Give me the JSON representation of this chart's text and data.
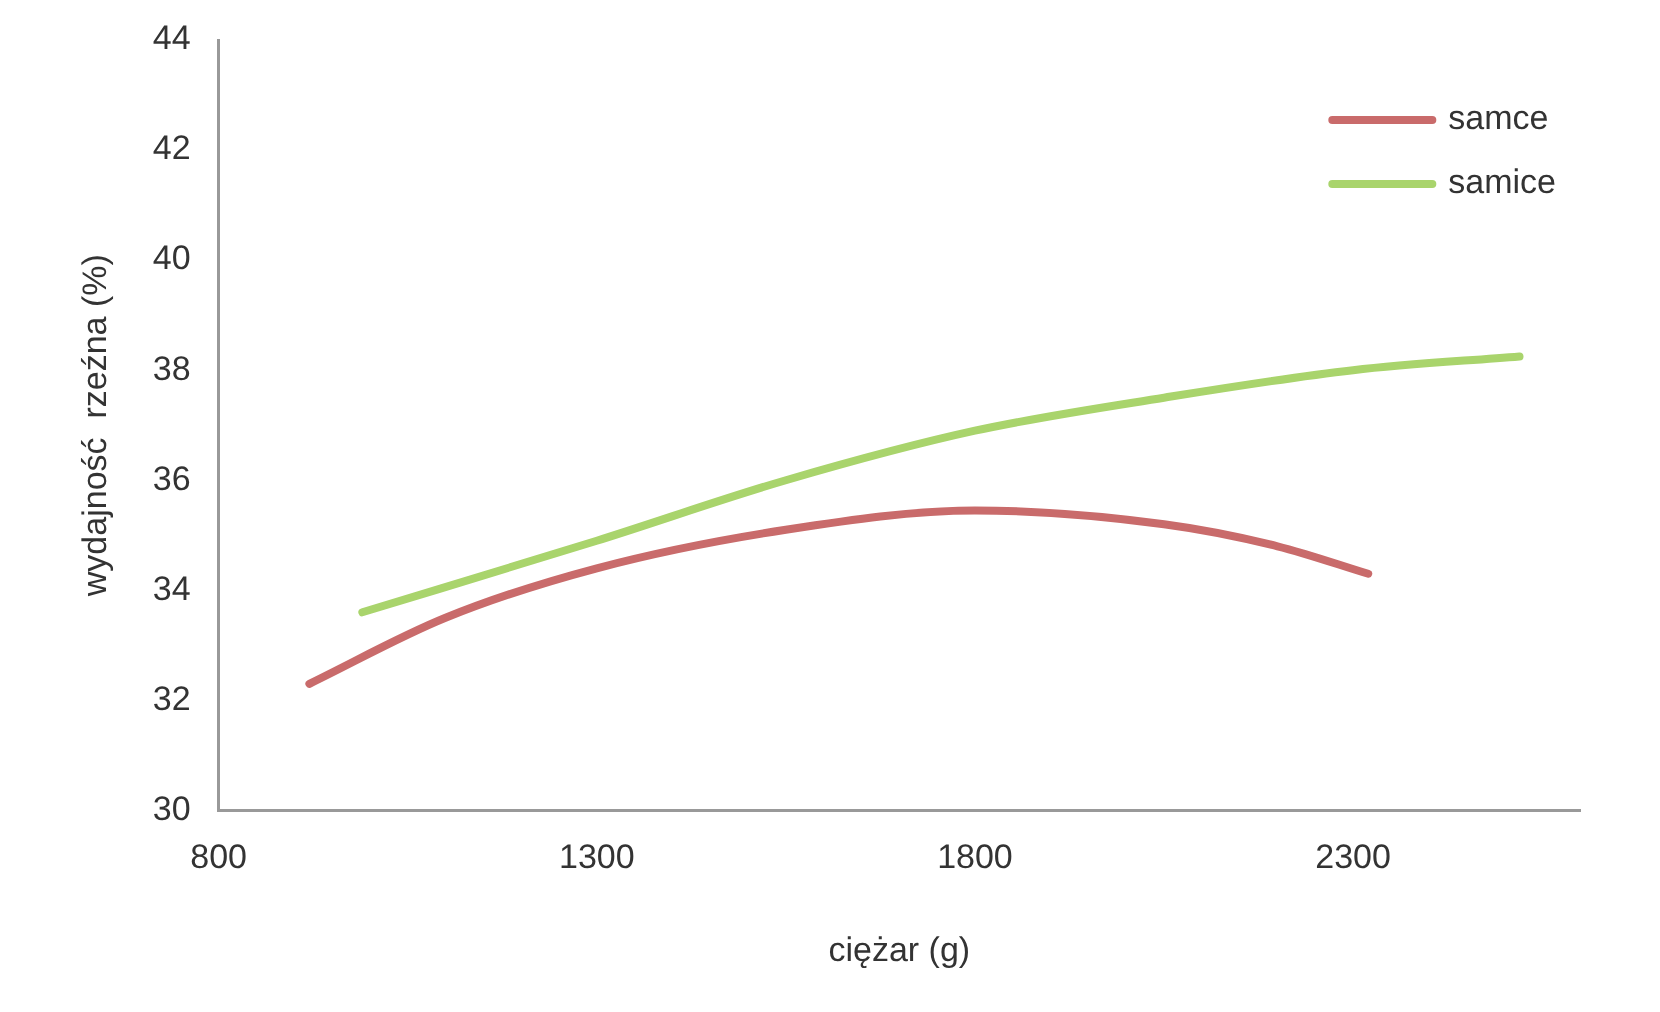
{
  "chart_data": {
    "type": "line",
    "xlabel": "ciężar (g)",
    "ylabel": "wydajność  rzeźna (%)",
    "xlim": [
      800,
      2600
    ],
    "xticks": [
      800,
      1300,
      1800,
      2300
    ],
    "ylim": [
      30,
      44
    ],
    "yticks": [
      30,
      32,
      34,
      36,
      38,
      40,
      42,
      44
    ],
    "grid": false,
    "legend": "top right",
    "marker": "none",
    "line_style": "solid",
    "series": [
      {
        "name": "samce",
        "color": "#c96b6b",
        "x": [
          920,
          1100,
          1300,
          1550,
          1800,
          2050,
          2200,
          2320
        ],
        "values": [
          32.3,
          33.5,
          34.4,
          35.1,
          35.45,
          35.2,
          34.8,
          34.3
        ]
      },
      {
        "name": "samice",
        "color": "#a9d46c",
        "x": [
          990,
          1300,
          1550,
          1800,
          2050,
          2300,
          2520
        ],
        "values": [
          33.6,
          34.9,
          36.0,
          36.9,
          37.5,
          38.0,
          38.25
        ]
      }
    ]
  }
}
